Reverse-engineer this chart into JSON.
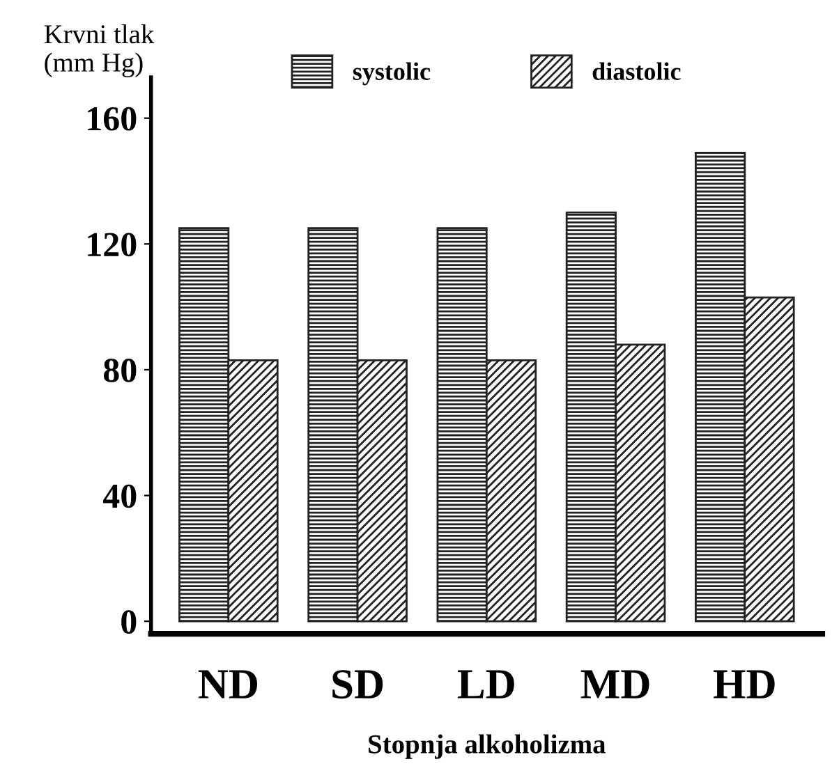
{
  "chart_data": {
    "type": "bar",
    "ylabel": "Krvni tlak\n(mm Hg)",
    "xlabel": "Stopnja alkoholizma",
    "categories": [
      "ND",
      "SD",
      "LD",
      "MD",
      "HD"
    ],
    "series": [
      {
        "name": "systolic",
        "color": "#222222",
        "values": [
          125,
          125,
          125,
          130,
          149
        ]
      },
      {
        "name": "diastolic",
        "color": "#222222",
        "values": [
          83,
          83,
          83,
          88,
          103
        ]
      }
    ],
    "ylim": [
      -4,
      173
    ],
    "yticks": [
      0,
      40,
      80,
      120,
      160
    ],
    "grid": false,
    "legend": "top"
  }
}
